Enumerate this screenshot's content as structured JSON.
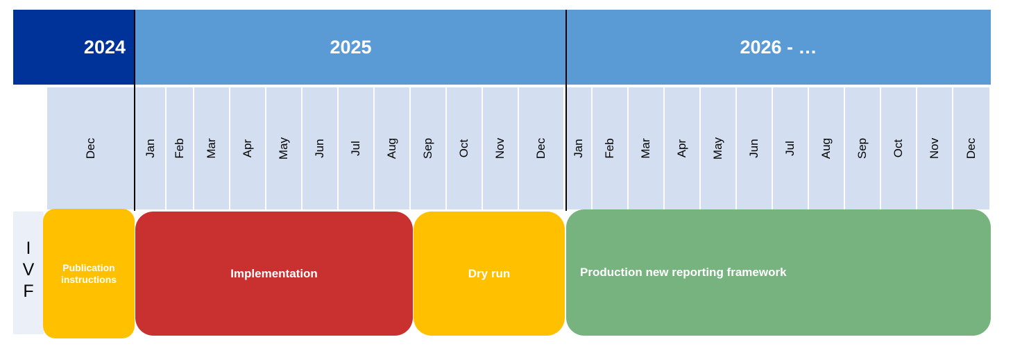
{
  "years": {
    "y2024": "2024",
    "y2025": "2025",
    "y2026": "2026 - …"
  },
  "months_2024": [
    "Dec"
  ],
  "months_2025": [
    "Jan",
    "Feb",
    "Mar",
    "Apr",
    "May",
    "Jun",
    "Jul",
    "Aug",
    "Sep",
    "Oct",
    "Nov",
    "Dec"
  ],
  "months_2026": [
    "Jan",
    "Feb",
    "Mar",
    "Apr",
    "May",
    "Jun",
    "Jul",
    "Aug",
    "Sep",
    "Oct",
    "Nov",
    "Dec"
  ],
  "row": {
    "letters": [
      "I",
      "V",
      "F"
    ]
  },
  "phases": {
    "publication": "Publication instructions",
    "implementation": "Implementation",
    "dry_run": "Dry run",
    "production": "Production new reporting framework"
  },
  "colors": {
    "dark_blue": "#003399",
    "light_blue": "#5b9bd5",
    "month_bg": "#d3dff0",
    "yellow": "#ffc000",
    "red": "#c93030",
    "green": "#76b37f"
  }
}
